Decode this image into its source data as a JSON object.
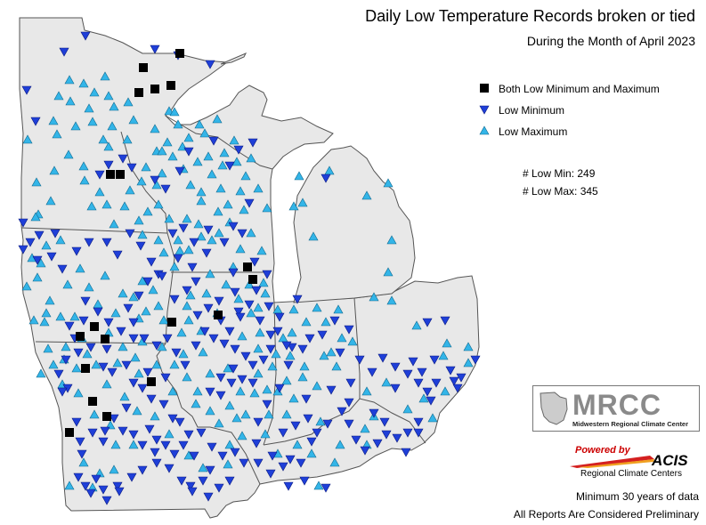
{
  "title": "Daily Low Temperature Records broken or tied",
  "subtitle": "During the Month of April 2023",
  "legend": {
    "both": "Both Low Minimum and Maximum",
    "low_min": "Low Minimum",
    "low_max": "Low Maximum"
  },
  "counts": {
    "low_min": "# Low Min: 249",
    "low_max": "# Low Max: 345"
  },
  "logo": {
    "name": "MRCC",
    "full": "Midwestern Regional Climate Center"
  },
  "acis": {
    "powered": "Powered by",
    "name": "ACIS",
    "rcc": "Regional Climate Centers"
  },
  "footer": {
    "note1": "Minimum 30 years of data",
    "note2": "All Reports Are Considered Preliminary"
  },
  "colors": {
    "land": "#e8e8e8",
    "outline": "#555555",
    "low_min": "#1f3fd8",
    "low_max": "#33b5e8",
    "both": "#000000"
  }
}
